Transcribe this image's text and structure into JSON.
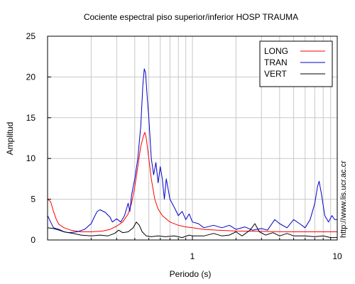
{
  "chart_data": {
    "type": "line",
    "title": "Cociente espectral piso superior/inferior  HOSP TRAUMA",
    "xlabel": "Periodo (s)",
    "ylabel": "Amplitud",
    "x_scale": "log",
    "xlim": [
      0.1,
      10
    ],
    "ylim": [
      0,
      25
    ],
    "grid": true,
    "legend_position": "top-right",
    "x_tick_labels": [
      {
        "value": 1,
        "label": "1"
      },
      {
        "value": 10,
        "label": "10"
      }
    ],
    "y_tick_labels": [
      {
        "value": 0,
        "label": "0"
      },
      {
        "value": 5,
        "label": "5"
      },
      {
        "value": 10,
        "label": "10"
      },
      {
        "value": 15,
        "label": "15"
      },
      {
        "value": 20,
        "label": "20"
      },
      {
        "value": 25,
        "label": "25"
      }
    ],
    "series": [
      {
        "name": "LONG",
        "color": "#ff0000",
        "points": [
          [
            0.1,
            5.0
          ],
          [
            0.105,
            4.7
          ],
          [
            0.11,
            3.5
          ],
          [
            0.115,
            2.5
          ],
          [
            0.12,
            1.9
          ],
          [
            0.13,
            1.5
          ],
          [
            0.145,
            1.2
          ],
          [
            0.17,
            1.0
          ],
          [
            0.2,
            1.0
          ],
          [
            0.24,
            1.1
          ],
          [
            0.27,
            1.3
          ],
          [
            0.3,
            1.7
          ],
          [
            0.33,
            2.2
          ],
          [
            0.36,
            3.2
          ],
          [
            0.38,
            4.5
          ],
          [
            0.4,
            6.5
          ],
          [
            0.42,
            9.0
          ],
          [
            0.44,
            11.5
          ],
          [
            0.46,
            12.8
          ],
          [
            0.47,
            13.2
          ],
          [
            0.48,
            12.5
          ],
          [
            0.5,
            10.0
          ],
          [
            0.52,
            7.5
          ],
          [
            0.55,
            5.0
          ],
          [
            0.58,
            3.8
          ],
          [
            0.62,
            3.0
          ],
          [
            0.7,
            2.2
          ],
          [
            0.8,
            1.8
          ],
          [
            0.9,
            1.6
          ],
          [
            1.0,
            1.5
          ],
          [
            1.2,
            1.3
          ],
          [
            1.5,
            1.2
          ],
          [
            2.0,
            1.1
          ],
          [
            3.0,
            1.05
          ],
          [
            5.0,
            1.0
          ],
          [
            7.0,
            1.0
          ],
          [
            10.0,
            1.0
          ]
        ]
      },
      {
        "name": "TRAN",
        "color": "#0000cc",
        "points": [
          [
            0.1,
            3.0
          ],
          [
            0.105,
            2.2
          ],
          [
            0.11,
            1.5
          ],
          [
            0.12,
            1.3
          ],
          [
            0.13,
            1.0
          ],
          [
            0.14,
            0.9
          ],
          [
            0.16,
            1.0
          ],
          [
            0.18,
            1.3
          ],
          [
            0.2,
            2.0
          ],
          [
            0.21,
            2.8
          ],
          [
            0.22,
            3.5
          ],
          [
            0.23,
            3.7
          ],
          [
            0.25,
            3.4
          ],
          [
            0.27,
            2.8
          ],
          [
            0.28,
            2.2
          ],
          [
            0.3,
            2.6
          ],
          [
            0.32,
            2.2
          ],
          [
            0.34,
            3.0
          ],
          [
            0.36,
            4.5
          ],
          [
            0.37,
            3.5
          ],
          [
            0.38,
            5.5
          ],
          [
            0.4,
            7.5
          ],
          [
            0.42,
            10.0
          ],
          [
            0.44,
            14.0
          ],
          [
            0.455,
            19.0
          ],
          [
            0.465,
            21.0
          ],
          [
            0.475,
            20.5
          ],
          [
            0.49,
            17.0
          ],
          [
            0.5,
            15.0
          ],
          [
            0.52,
            10.0
          ],
          [
            0.54,
            8.0
          ],
          [
            0.56,
            9.5
          ],
          [
            0.58,
            7.0
          ],
          [
            0.6,
            9.0
          ],
          [
            0.62,
            7.5
          ],
          [
            0.64,
            5.0
          ],
          [
            0.66,
            7.5
          ],
          [
            0.7,
            5.0
          ],
          [
            0.75,
            4.0
          ],
          [
            0.8,
            3.0
          ],
          [
            0.85,
            3.5
          ],
          [
            0.9,
            2.5
          ],
          [
            0.95,
            3.2
          ],
          [
            1.0,
            2.2
          ],
          [
            1.1,
            2.0
          ],
          [
            1.2,
            1.5
          ],
          [
            1.4,
            1.8
          ],
          [
            1.6,
            1.5
          ],
          [
            1.8,
            1.8
          ],
          [
            2.0,
            1.3
          ],
          [
            2.3,
            1.6
          ],
          [
            2.6,
            1.2
          ],
          [
            3.0,
            1.4
          ],
          [
            3.3,
            1.2
          ],
          [
            3.7,
            2.5
          ],
          [
            4.0,
            2.0
          ],
          [
            4.5,
            1.5
          ],
          [
            5.0,
            2.5
          ],
          [
            5.5,
            2.0
          ],
          [
            6.0,
            1.5
          ],
          [
            6.5,
            2.5
          ],
          [
            7.0,
            4.5
          ],
          [
            7.3,
            6.5
          ],
          [
            7.5,
            7.2
          ],
          [
            7.8,
            5.5
          ],
          [
            8.2,
            3.0
          ],
          [
            8.7,
            2.2
          ],
          [
            9.2,
            3.0
          ],
          [
            9.6,
            2.5
          ],
          [
            10.0,
            2.5
          ]
        ]
      },
      {
        "name": "VERT",
        "color": "#000000",
        "points": [
          [
            0.1,
            1.5
          ],
          [
            0.11,
            1.4
          ],
          [
            0.12,
            1.2
          ],
          [
            0.13,
            1.0
          ],
          [
            0.15,
            0.8
          ],
          [
            0.17,
            0.6
          ],
          [
            0.2,
            0.5
          ],
          [
            0.23,
            0.6
          ],
          [
            0.26,
            0.5
          ],
          [
            0.29,
            0.8
          ],
          [
            0.31,
            1.2
          ],
          [
            0.33,
            0.9
          ],
          [
            0.36,
            1.0
          ],
          [
            0.39,
            1.5
          ],
          [
            0.41,
            2.2
          ],
          [
            0.43,
            1.8
          ],
          [
            0.45,
            1.0
          ],
          [
            0.48,
            0.5
          ],
          [
            0.52,
            0.4
          ],
          [
            0.58,
            0.5
          ],
          [
            0.65,
            0.4
          ],
          [
            0.75,
            0.5
          ],
          [
            0.85,
            0.3
          ],
          [
            0.95,
            0.6
          ],
          [
            1.0,
            0.5
          ],
          [
            1.2,
            0.5
          ],
          [
            1.4,
            0.8
          ],
          [
            1.6,
            0.5
          ],
          [
            1.8,
            0.6
          ],
          [
            2.0,
            1.0
          ],
          [
            2.2,
            0.5
          ],
          [
            2.5,
            1.2
          ],
          [
            2.7,
            2.0
          ],
          [
            2.9,
            1.0
          ],
          [
            3.2,
            0.6
          ],
          [
            3.6,
            0.9
          ],
          [
            4.0,
            0.5
          ],
          [
            4.5,
            0.8
          ],
          [
            5.0,
            0.5
          ],
          [
            6.0,
            0.5
          ],
          [
            7.0,
            0.4
          ],
          [
            8.0,
            0.5
          ],
          [
            9.0,
            0.3
          ],
          [
            10.0,
            0.3
          ]
        ]
      }
    ]
  },
  "watermark": "http://www.lis.ucr.ac.cr"
}
